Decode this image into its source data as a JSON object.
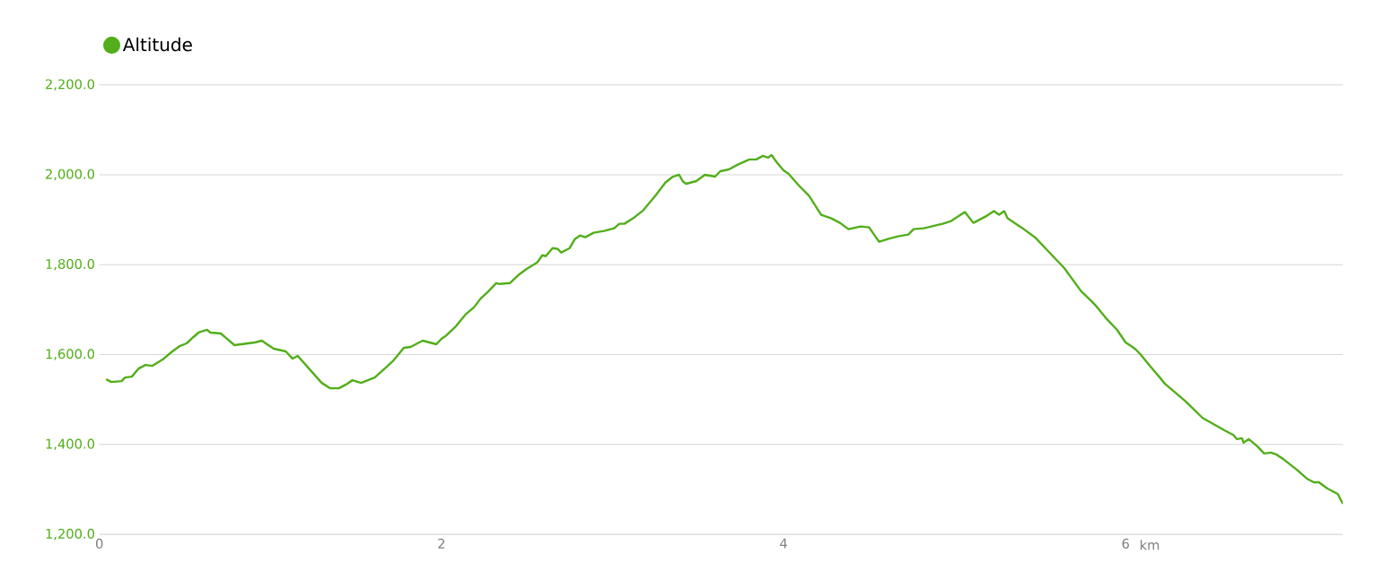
{
  "chart_data": {
    "type": "line",
    "xlabel": "km",
    "legend": "top left",
    "grid": "y",
    "marker": "none",
    "line_style": "solid",
    "xlim": [
      0,
      7.27
    ],
    "xticks": [
      0,
      2,
      4,
      6
    ],
    "ylim": [
      1200,
      2200
    ],
    "yticks": [
      {
        "value": 1200,
        "label": "1,200.0"
      },
      {
        "value": 1400,
        "label": "1,400.0"
      },
      {
        "value": 1600,
        "label": "1,600.0"
      },
      {
        "value": 1800,
        "label": "1,800.0"
      },
      {
        "value": 2000,
        "label": "2,000.0"
      },
      {
        "value": 2200,
        "label": "2,200.0"
      }
    ],
    "x": [
      0.04,
      0.07,
      0.13,
      0.15,
      0.19,
      0.23,
      0.27,
      0.31,
      0.37,
      0.42,
      0.47,
      0.51,
      0.55,
      0.58,
      0.63,
      0.65,
      0.71,
      0.79,
      0.91,
      0.95,
      0.98,
      1.02,
      1.09,
      1.13,
      1.16,
      1.23,
      1.3,
      1.35,
      1.4,
      1.44,
      1.48,
      1.53,
      1.61,
      1.68,
      1.72,
      1.78,
      1.82,
      1.89,
      1.97,
      2.0,
      2.03,
      2.08,
      2.14,
      2.19,
      2.23,
      2.27,
      2.32,
      2.34,
      2.4,
      2.45,
      2.5,
      2.56,
      2.59,
      2.61,
      2.65,
      2.68,
      2.7,
      2.75,
      2.78,
      2.81,
      2.84,
      2.89,
      2.95,
      3.01,
      3.04,
      3.07,
      3.12,
      3.18,
      3.25,
      3.31,
      3.35,
      3.39,
      3.41,
      3.43,
      3.49,
      3.54,
      3.6,
      3.63,
      3.68,
      3.73,
      3.8,
      3.84,
      3.88,
      3.91,
      3.93,
      3.96,
      4.0,
      4.03,
      4.09,
      4.15,
      4.22,
      4.28,
      4.33,
      4.38,
      4.45,
      4.5,
      4.54,
      4.56,
      4.61,
      4.67,
      4.73,
      4.76,
      4.82,
      4.93,
      4.98,
      5.06,
      5.11,
      5.19,
      5.23,
      5.26,
      5.29,
      5.31,
      5.39,
      5.47,
      5.54,
      5.64,
      5.74,
      5.8,
      5.83,
      5.89,
      5.95,
      6.0,
      6.04,
      6.06,
      6.09,
      6.15,
      6.2,
      6.23,
      6.35,
      6.45,
      6.58,
      6.63,
      6.65,
      6.68,
      6.69,
      6.72,
      6.77,
      6.81,
      6.85,
      6.88,
      6.92,
      7.0,
      7.06,
      7.1,
      7.13,
      7.18,
      7.24,
      7.27
    ],
    "series": [
      {
        "name": "Altitude",
        "color": "#52ae1a",
        "values": [
          1545,
          1539,
          1541,
          1549,
          1551,
          1569,
          1577,
          1575,
          1589,
          1605,
          1619,
          1625,
          1639,
          1649,
          1655,
          1649,
          1647,
          1621,
          1627,
          1631,
          1623,
          1613,
          1607,
          1591,
          1597,
          1567,
          1537,
          1525,
          1525,
          1533,
          1543,
          1537,
          1549,
          1573,
          1587,
          1615,
          1617,
          1631,
          1623,
          1635,
          1643,
          1661,
          1689,
          1705,
          1725,
          1739,
          1759,
          1757,
          1759,
          1777,
          1791,
          1805,
          1821,
          1819,
          1837,
          1835,
          1827,
          1837,
          1857,
          1865,
          1861,
          1871,
          1875,
          1881,
          1891,
          1891,
          1903,
          1921,
          1953,
          1983,
          1995,
          2000,
          1986,
          1980,
          1986,
          2000,
          1996,
          2008,
          2012,
          2022,
          2034,
          2034,
          2042,
          2038,
          2044,
          2028,
          2010,
          2002,
          1976,
          1953,
          1911,
          1903,
          1893,
          1879,
          1885,
          1883,
          1861,
          1851,
          1857,
          1863,
          1867,
          1879,
          1881,
          1891,
          1897,
          1917,
          1893,
          1909,
          1919,
          1911,
          1919,
          1903,
          1883,
          1861,
          1833,
          1793,
          1741,
          1719,
          1707,
          1679,
          1655,
          1627,
          1617,
          1611,
          1599,
          1571,
          1549,
          1535,
          1496,
          1459,
          1431,
          1421,
          1412,
          1414,
          1404,
          1412,
          1396,
          1380,
          1382,
          1378,
          1368,
          1344,
          1324,
          1316,
          1316,
          1302,
          1290,
          1268
        ]
      }
    ]
  }
}
